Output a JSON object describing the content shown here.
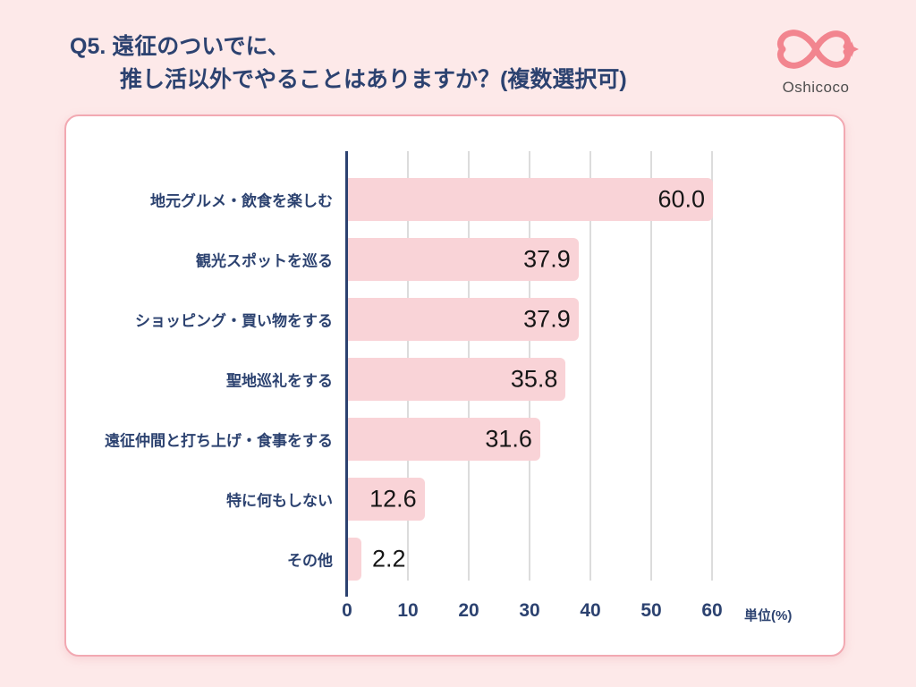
{
  "header": {
    "title_line1": "Q5. 遠征のついでに、",
    "title_line2": "推し活以外でやることはありますか？(複数選択可)",
    "logo_text": "Oshicoco"
  },
  "colors": {
    "page_bg": "#FDE9E9",
    "card_bg": "#FFFFFF",
    "card_border": "#F2A9B2",
    "title_navy": "#2C4270",
    "bar_pink": "#F9D3D7",
    "value_text": "#161616",
    "gridline": "#DCDCDC",
    "logo_pink": "#F2858F",
    "logo_text_color": "#4F4F4F"
  },
  "chart_data": {
    "type": "bar",
    "orientation": "horizontal",
    "title": "Q5. 遠征のついでに、推し活以外でやることはありますか？(複数選択可)",
    "categories": [
      "地元グルメ・飲食を楽しむ",
      "観光スポットを巡る",
      "ショッピング・買い物をする",
      "聖地巡礼をする",
      "遠征仲間と打ち上げ・食事をする",
      "特に何もしない",
      "その他"
    ],
    "values": [
      60.0,
      37.9,
      37.9,
      35.8,
      31.6,
      12.6,
      2.2
    ],
    "value_labels": [
      "60.0",
      "37.9",
      "37.9",
      "35.8",
      "31.6",
      "12.6",
      "2.2"
    ],
    "x_ticks": [
      0,
      10,
      20,
      30,
      40,
      50,
      60
    ],
    "xlim": [
      0,
      66
    ],
    "unit_label": "単位(%)",
    "grid": true,
    "legend": false,
    "bar_color": "#F9D3D7"
  }
}
